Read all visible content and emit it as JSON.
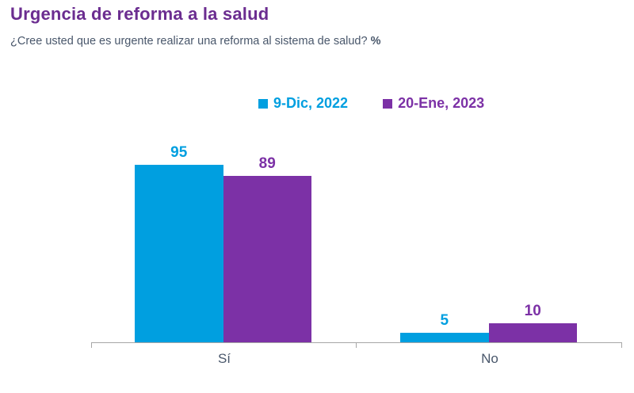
{
  "header": {
    "title": "Urgencia de reforma a la salud",
    "subtitle": "¿Cree usted que es urgente realizar una reforma al sistema de salud?",
    "subtitle_unit": "%"
  },
  "colors": {
    "title": "#6B2D90",
    "subtitle_text": "#49576B",
    "axis": "#A6A6A6",
    "series_2022": "#009FE0",
    "series_2023": "#7C31A6"
  },
  "chart_data": {
    "type": "bar",
    "title": "Urgencia de reforma a la salud",
    "subtitle": "¿Cree usted que es urgente realizar una reforma al sistema de salud? %",
    "categories": [
      "Sí",
      "No"
    ],
    "series": [
      {
        "name": "9-Dic, 2022",
        "color": "#009FE0",
        "values": [
          95,
          5
        ]
      },
      {
        "name": "20-Ene, 2023",
        "color": "#7C31A6",
        "values": [
          89,
          10
        ]
      }
    ],
    "ylim": [
      0,
      100
    ],
    "grid": false,
    "legend_position": "top-center",
    "value_labels": true,
    "xlabel": "",
    "ylabel": ""
  }
}
